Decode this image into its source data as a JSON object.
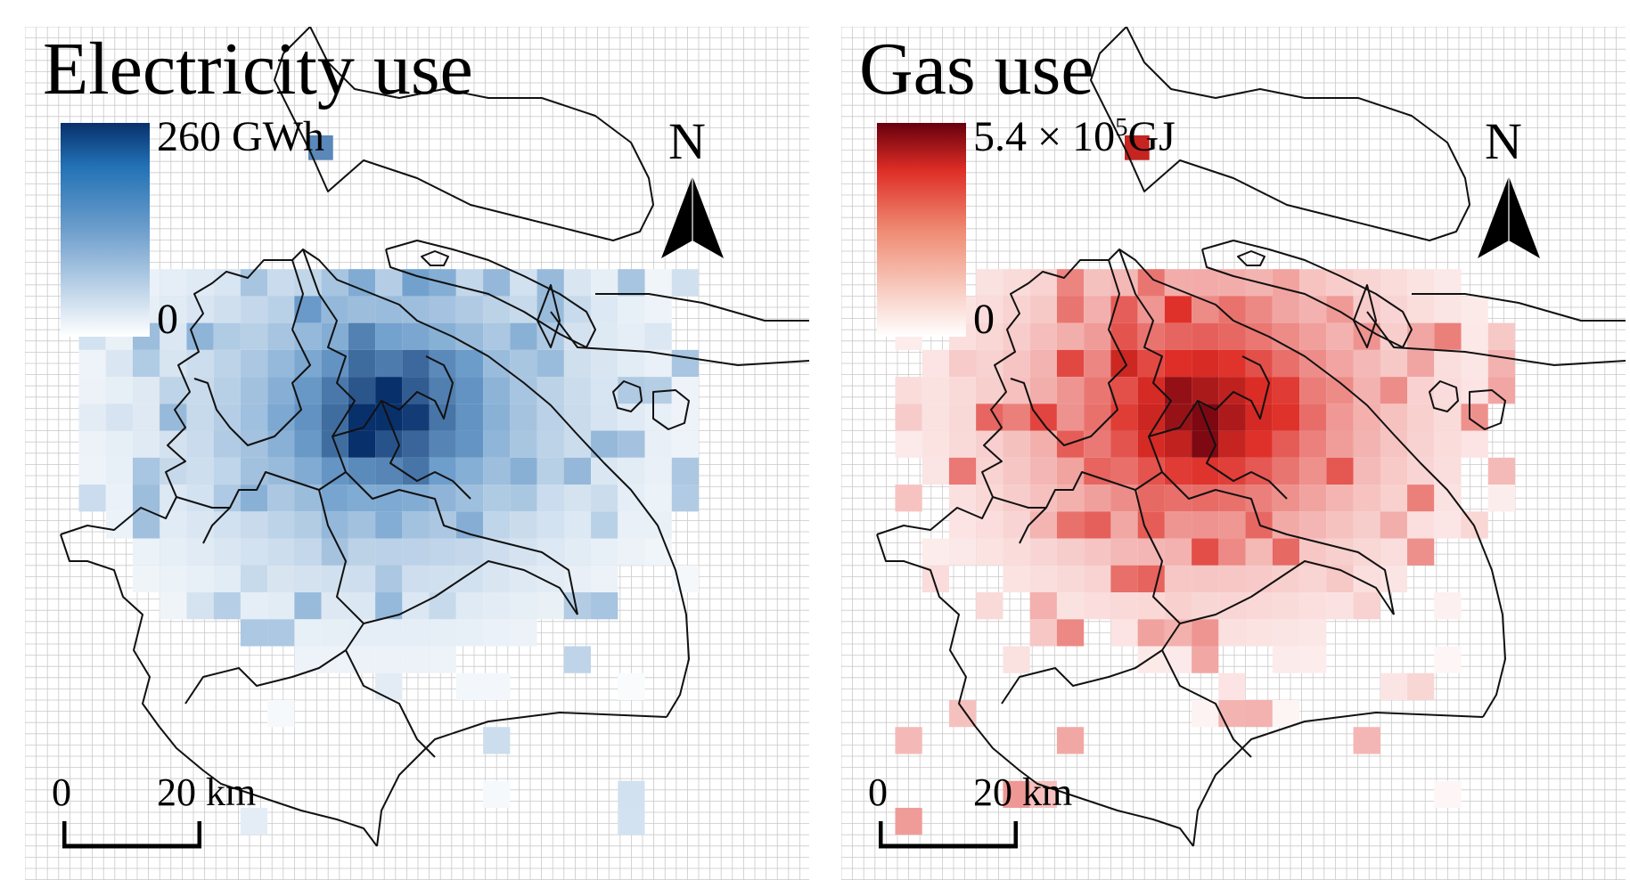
{
  "panels": {
    "electricity": {
      "title": "Electricity use",
      "legend_max": "260 GWh",
      "legend_min": "0",
      "color_low": "#ffffff",
      "color_mid": "#6d9ecc",
      "color_high": "#08306b",
      "north_label": "N",
      "scale_zero": "0",
      "scale_dist": "20 km"
    },
    "gas": {
      "title": "Gas use",
      "legend_max_prefix": "5.4 × 10",
      "legend_max_exp": "5",
      "legend_max_unit": "GJ",
      "legend_min": "0",
      "color_low": "#ffffff",
      "color_mid": "#de2d26",
      "color_high": "#67000d",
      "north_label": "N",
      "scale_zero": "0",
      "scale_dist": "20 km"
    }
  },
  "icons": {
    "north_arrow": "north-arrow-icon"
  }
}
